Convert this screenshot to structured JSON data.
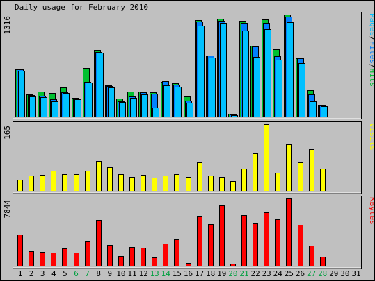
{
  "chart_data": {
    "type": "bar",
    "title": "Daily usage for February 2010",
    "days": [
      "1",
      "2",
      "3",
      "4",
      "5",
      "6",
      "7",
      "8",
      "9",
      "10",
      "11",
      "12",
      "13",
      "14",
      "15",
      "16",
      "17",
      "18",
      "19",
      "20",
      "21",
      "22",
      "23",
      "24",
      "25",
      "26",
      "27",
      "28",
      "29",
      "30",
      "31"
    ],
    "weekend_days": [
      "6",
      "7",
      "13",
      "14",
      "20",
      "21",
      "27",
      "28"
    ],
    "panels": [
      {
        "key": "pfh",
        "ymax_label": "1316",
        "ylim": [
          0,
          1316
        ],
        "legend": [
          {
            "text": "Pages",
            "color": "#00C0FF"
          },
          {
            "text": "/",
            "color": "#000000"
          },
          {
            "text": "Files",
            "color": "#0080FF"
          },
          {
            "text": "/",
            "color": "#000000"
          },
          {
            "text": "Hits",
            "color": "#00C030"
          }
        ],
        "series": [
          {
            "name": "Hits",
            "color": "#00C030",
            "values": [
              613,
              290,
              318,
              307,
              376,
              245,
              623,
              857,
              404,
              232,
              318,
              319,
              315,
              446,
              427,
              262,
              1245,
              792,
              1265,
              34,
              1231,
              913,
              1250,
              871,
              1316,
              750,
              336,
              149
            ]
          },
          {
            "name": "Files",
            "color": "#0080FF",
            "values": [
              605,
              280,
              269,
              228,
              311,
              236,
              447,
              833,
              393,
              196,
              261,
              317,
              299,
              456,
              416,
              210,
              1222,
              785,
              1236,
              26,
              1211,
              906,
              1210,
              775,
              1289,
              749,
              289,
              140
            ]
          },
          {
            "name": "Pages",
            "color": "#00C0FF",
            "values": [
              588,
              263,
              252,
              197,
              301,
              226,
              436,
              825,
              376,
              185,
              245,
              283,
              112,
              405,
              381,
              176,
              1176,
              762,
              1211,
              16,
              1106,
              771,
              1124,
              731,
              1219,
              692,
              200,
              130
            ]
          }
        ]
      },
      {
        "key": "visits",
        "ymax_label": "165",
        "ylim": [
          0,
          165
        ],
        "legend": [
          {
            "text": "Visits",
            "color": "#FFFF00"
          }
        ],
        "series": [
          {
            "name": "Visits",
            "color": "#FFFF00",
            "values": [
              28,
              37,
              39,
              50,
              41,
              42,
              50,
              74,
              59,
              42,
              35,
              40,
              32,
              38,
              42,
              34,
              70,
              38,
              35,
              24,
              55,
              93,
              165,
              44,
              116,
              71,
              103,
              55
            ]
          }
        ]
      },
      {
        "key": "kbytes",
        "ymax_label": "7844",
        "ylim": [
          0,
          7844
        ],
        "legend": [
          {
            "text": "KBytes",
            "color": "#FF0000"
          }
        ],
        "series": [
          {
            "name": "KBytes",
            "color": "#FF0000",
            "values": [
              3610,
              1698,
              1648,
              1555,
              2061,
              1504,
              2794,
              5307,
              2445,
              1118,
              2200,
              2085,
              971,
              2589,
              3034,
              306,
              5733,
              4837,
              7032,
              264,
              5884,
              4910,
              6265,
              5390,
              7844,
              4740,
              2340,
              1036
            ]
          }
        ]
      }
    ]
  }
}
